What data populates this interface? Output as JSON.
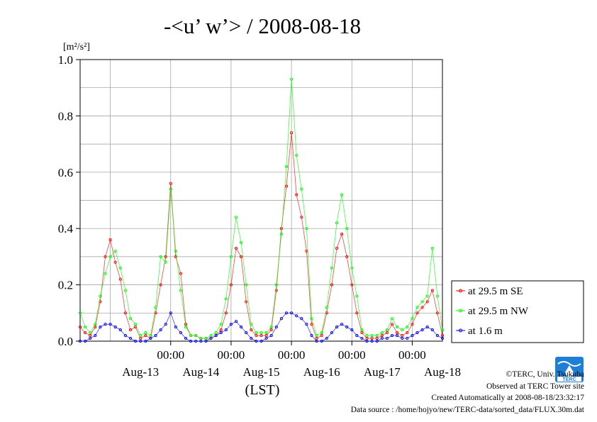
{
  "chart_data": {
    "type": "line",
    "title": "-<u’ w’> / 2008-08-18",
    "ylabel": "[m²/s²]",
    "xlabel": "(LST)",
    "ylim": [
      0,
      1.0
    ],
    "yticks": [
      "0.0",
      "0.2",
      "0.4",
      "0.6",
      "0.8",
      "1.0"
    ],
    "x_time_labels": [
      "00:00",
      "00:00",
      "00:00",
      "00:00",
      "00:00"
    ],
    "x_date_labels": [
      "Aug-13",
      "Aug-14",
      "Aug-15",
      "Aug-16",
      "Aug-17",
      "Aug-18"
    ],
    "grid": true,
    "legend_position": "right",
    "series": [
      {
        "name": "at 29.5 m SE",
        "color": "#ff0000",
        "x_hours": [
          0,
          2,
          4,
          6,
          8,
          10,
          12,
          14,
          16,
          18,
          20,
          22,
          24,
          26,
          28,
          30,
          32,
          34,
          36,
          38,
          40,
          42,
          44,
          46,
          48,
          50,
          52,
          54,
          56,
          58,
          60,
          62,
          64,
          66,
          68,
          70,
          72,
          74,
          76,
          78,
          80,
          82,
          84,
          86,
          88,
          90,
          92,
          94,
          96,
          98,
          100,
          102,
          104,
          106,
          108,
          110,
          112,
          114,
          116,
          118,
          120,
          122,
          124,
          126,
          128,
          130,
          132,
          134,
          136,
          138,
          140,
          142,
          144
        ],
        "values": [
          0.05,
          0.03,
          0.02,
          0.05,
          0.14,
          0.3,
          0.36,
          0.28,
          0.22,
          0.1,
          0.04,
          0.05,
          0.01,
          0.02,
          0.01,
          0.1,
          0.2,
          0.3,
          0.56,
          0.3,
          0.24,
          0.06,
          0.02,
          0.02,
          0.01,
          0.01,
          0.01,
          0.02,
          0.04,
          0.1,
          0.2,
          0.33,
          0.3,
          0.14,
          0.04,
          0.02,
          0.02,
          0.02,
          0.04,
          0.18,
          0.4,
          0.55,
          0.74,
          0.52,
          0.44,
          0.32,
          0.06,
          0.01,
          0.02,
          0.1,
          0.2,
          0.33,
          0.38,
          0.3,
          0.2,
          0.1,
          0.03,
          0.01,
          0.01,
          0.01,
          0.02,
          0.03,
          0.06,
          0.03,
          0.02,
          0.03,
          0.06,
          0.1,
          0.12,
          0.14,
          0.18,
          0.1,
          0.02
        ]
      },
      {
        "name": "at 29.5 m NW",
        "color": "#00ff00",
        "x_hours": [
          0,
          2,
          4,
          6,
          8,
          10,
          12,
          14,
          16,
          18,
          20,
          22,
          24,
          26,
          28,
          30,
          32,
          34,
          36,
          38,
          40,
          42,
          44,
          46,
          48,
          50,
          52,
          54,
          56,
          58,
          60,
          62,
          64,
          66,
          68,
          70,
          72,
          74,
          76,
          78,
          80,
          82,
          84,
          86,
          88,
          90,
          92,
          94,
          96,
          98,
          100,
          102,
          104,
          106,
          108,
          110,
          112,
          114,
          116,
          118,
          120,
          122,
          124,
          126,
          128,
          130,
          132,
          134,
          136,
          138,
          140,
          142,
          144
        ],
        "values": [
          0.1,
          0.05,
          0.03,
          0.06,
          0.16,
          0.24,
          0.3,
          0.32,
          0.26,
          0.18,
          0.08,
          0.06,
          0.02,
          0.03,
          0.02,
          0.12,
          0.3,
          0.28,
          0.54,
          0.32,
          0.18,
          0.05,
          0.02,
          0.02,
          0.01,
          0.01,
          0.02,
          0.03,
          0.06,
          0.15,
          0.3,
          0.44,
          0.35,
          0.2,
          0.06,
          0.03,
          0.03,
          0.03,
          0.05,
          0.2,
          0.38,
          0.62,
          0.93,
          0.66,
          0.54,
          0.4,
          0.08,
          0.02,
          0.03,
          0.12,
          0.26,
          0.42,
          0.52,
          0.4,
          0.26,
          0.16,
          0.04,
          0.02,
          0.02,
          0.02,
          0.03,
          0.04,
          0.08,
          0.05,
          0.04,
          0.05,
          0.08,
          0.12,
          0.14,
          0.16,
          0.33,
          0.16,
          0.04
        ]
      },
      {
        "name": "at 1.6 m",
        "color": "#0000ff",
        "x_hours": [
          0,
          2,
          4,
          6,
          8,
          10,
          12,
          14,
          16,
          18,
          20,
          22,
          24,
          26,
          28,
          30,
          32,
          34,
          36,
          38,
          40,
          42,
          44,
          46,
          48,
          50,
          52,
          54,
          56,
          58,
          60,
          62,
          64,
          66,
          68,
          70,
          72,
          74,
          76,
          78,
          80,
          82,
          84,
          86,
          88,
          90,
          92,
          94,
          96,
          98,
          100,
          102,
          104,
          106,
          108,
          110,
          112,
          114,
          116,
          118,
          120,
          122,
          124,
          126,
          128,
          130,
          132,
          134,
          136,
          138,
          140,
          142,
          144
        ],
        "values": [
          0.0,
          0.0,
          0.01,
          0.02,
          0.05,
          0.06,
          0.06,
          0.05,
          0.04,
          0.02,
          0.01,
          0.0,
          0.0,
          0.0,
          0.01,
          0.02,
          0.04,
          0.06,
          0.1,
          0.05,
          0.03,
          0.01,
          0.0,
          0.0,
          0.0,
          0.0,
          0.01,
          0.02,
          0.03,
          0.04,
          0.06,
          0.07,
          0.05,
          0.03,
          0.01,
          0.0,
          0.0,
          0.01,
          0.02,
          0.05,
          0.08,
          0.1,
          0.1,
          0.09,
          0.08,
          0.06,
          0.02,
          0.0,
          0.0,
          0.01,
          0.03,
          0.05,
          0.06,
          0.05,
          0.04,
          0.02,
          0.01,
          0.0,
          0.0,
          0.0,
          0.01,
          0.01,
          0.02,
          0.02,
          0.01,
          0.01,
          0.02,
          0.03,
          0.04,
          0.05,
          0.04,
          0.02,
          0.01
        ]
      }
    ]
  },
  "credits": {
    "copyright": "©TERC, Univ. Tsukuba",
    "observed": "Observed at TERC Tower site",
    "created": "Created Automatically at 2008-08-18/23:32:17",
    "source": "Data source : /home/hojyo/new/TERC-data/sorted_data/FLUX.30m.dat",
    "logo_text": "TERC"
  }
}
